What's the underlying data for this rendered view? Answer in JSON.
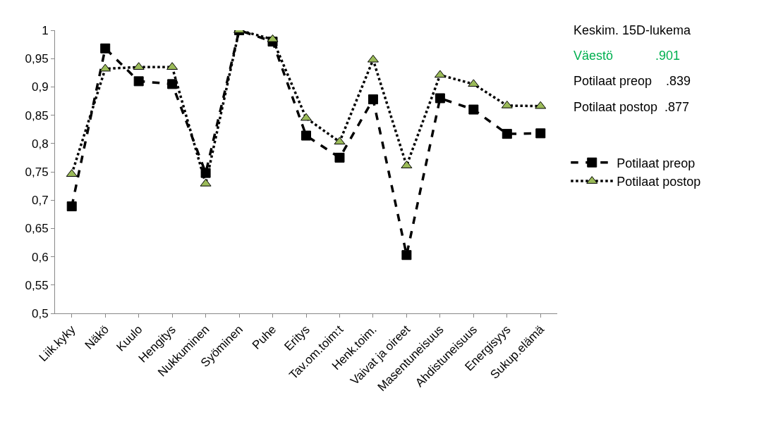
{
  "chart_data": {
    "type": "line",
    "categories": [
      "Liik.kyky",
      "Näkö",
      "Kuulo",
      "Hengitys",
      "Nukkuminen",
      "Syöminen",
      "Puhe",
      "Eritys",
      "Tav.om.toim:t",
      "Henk.toim.",
      "Vaivat ja oireet",
      "Masentuneisuus",
      "Ahdistuneisuus",
      "Energisyys",
      "Sukup.elämä"
    ],
    "series": [
      {
        "name": "Potilaat preop",
        "color": "#000000",
        "line_style": "dashed",
        "marker": "square",
        "values": [
          0.689,
          0.968,
          0.91,
          0.905,
          0.748,
          1.0,
          0.98,
          0.814,
          0.775,
          0.878,
          0.603,
          0.88,
          0.86,
          0.817,
          0.818
        ]
      },
      {
        "name": "Potilaat postop",
        "color": "#000000",
        "colors": [
          "#9bbb59",
          "#9bbb59",
          "#9bbb59",
          "#9bbb59",
          "#9bbb59",
          "#9bbb59",
          "#9bbb59",
          "#9bbb59",
          "#9bbb59",
          "#9bbb59",
          "#9bbb59",
          "#9bbb59",
          "#9bbb59",
          "#9bbb59",
          "#9bbb59"
        ],
        "line_style": "dotted",
        "marker": "triangle",
        "values": [
          0.746,
          0.932,
          0.935,
          0.935,
          0.729,
          1.0,
          0.984,
          0.845,
          0.803,
          0.948,
          0.761,
          0.921,
          0.905,
          0.867,
          0.866
        ]
      }
    ],
    "ylim": [
      0.5,
      1
    ],
    "yticks": [
      {
        "value": 0.5,
        "label": "0,5"
      },
      {
        "value": 0.55,
        "label": "0,55"
      },
      {
        "value": 0.6,
        "label": "0,6"
      },
      {
        "value": 0.65,
        "label": "0,65"
      },
      {
        "value": 0.7,
        "label": "0,7"
      },
      {
        "value": 0.75,
        "label": "0,75"
      },
      {
        "value": 0.8,
        "label": "0,8"
      },
      {
        "value": 0.85,
        "label": "0,85"
      },
      {
        "value": 0.9,
        "label": "0,9"
      },
      {
        "value": 0.95,
        "label": "0,95"
      },
      {
        "value": 1,
        "label": "1"
      }
    ],
    "annotations": [
      "Keskim. 15D-lukema",
      "Väestö            .901",
      "Potilaat preop    .839",
      "Potilaat postop  .877"
    ],
    "grid": false,
    "legend": "right"
  }
}
